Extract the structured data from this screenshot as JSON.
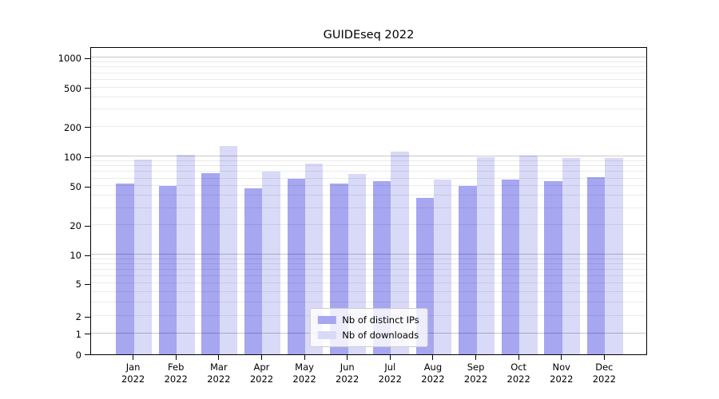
{
  "chart_data": {
    "type": "bar",
    "title": "GUIDEseq 2022",
    "categories": [
      "Jan 2022",
      "Feb 2022",
      "Mar 2022",
      "Apr 2022",
      "May 2022",
      "Jun 2022",
      "Jul 2022",
      "Aug 2022",
      "Sep 2022",
      "Oct 2022",
      "Nov 2022",
      "Dec 2022"
    ],
    "series": [
      {
        "name": "Nb of distinct IPs",
        "color": "#a6a6f1",
        "values": [
          53,
          50,
          68,
          48,
          59,
          53,
          56,
          38,
          50,
          58,
          56,
          62
        ]
      },
      {
        "name": "Nb of downloads",
        "color": "#d9d9f8",
        "values": [
          93,
          104,
          128,
          71,
          84,
          66,
          113,
          58,
          98,
          102,
          97,
          96
        ]
      }
    ],
    "xlabel": "",
    "ylabel": "",
    "yscale": "asinh-log",
    "y_tick_labels": [
      0,
      1,
      2,
      5,
      10,
      20,
      50,
      100,
      200,
      500,
      1000
    ],
    "major_gridlines": [
      1,
      10,
      100,
      1000
    ],
    "minor_gridlines": [
      2,
      3,
      4,
      5,
      6,
      7,
      8,
      9,
      20,
      30,
      40,
      50,
      60,
      70,
      80,
      90,
      200,
      300,
      400,
      500,
      600,
      700,
      800,
      900
    ],
    "ylim": [
      0,
      1300
    ],
    "grid": "on",
    "legend_position": "lower center"
  }
}
